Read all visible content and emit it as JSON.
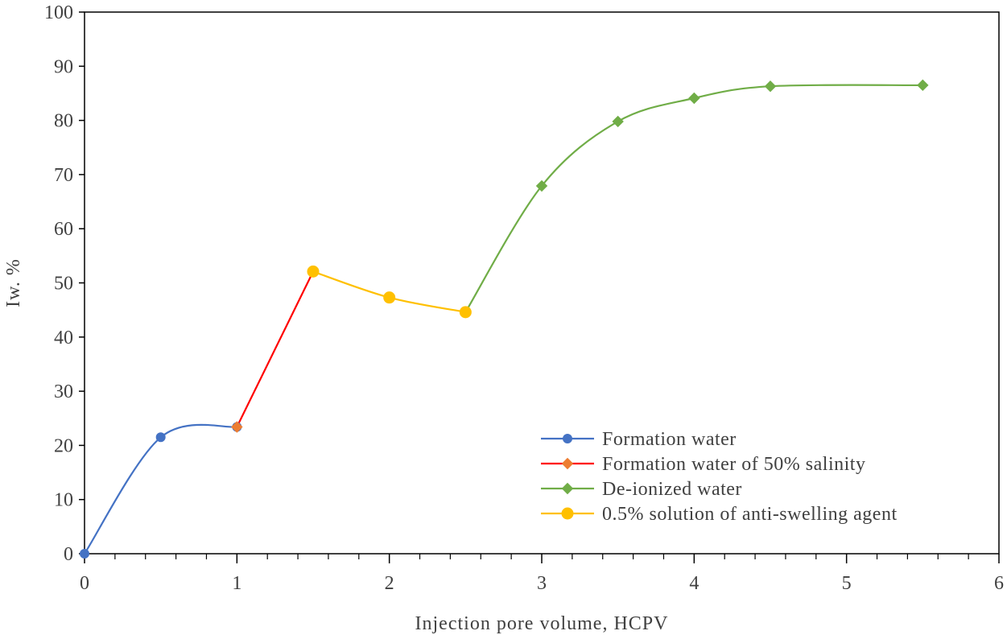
{
  "chart_data": {
    "type": "line",
    "title": "",
    "xlabel": "Injection pore volume, HCPV",
    "ylabel": "Iw. %",
    "xlim": [
      0,
      6
    ],
    "ylim": [
      0,
      100
    ],
    "xticks": [
      0,
      1,
      2,
      3,
      4,
      5,
      6
    ],
    "yticks": [
      0,
      10,
      20,
      30,
      40,
      50,
      60,
      70,
      80,
      90,
      100
    ],
    "x_minor_step": 0.2,
    "grid": false,
    "legend_position": "bottom-right",
    "series": [
      {
        "name": "Formation water",
        "color": "#4472C4",
        "marker": "circle",
        "smooth": true,
        "x": [
          0,
          0.5,
          1
        ],
        "y": [
          0,
          21.5,
          23.4
        ]
      },
      {
        "name": "Formation water of 50% salinity",
        "color": "#FF0000",
        "marker_color": "#ED7D31",
        "marker": "diamond",
        "smooth": false,
        "x": [
          1,
          1.5
        ],
        "y": [
          23.4,
          52.1
        ]
      },
      {
        "name": "De-ionized water",
        "color": "#70AD47",
        "marker": "diamond",
        "smooth": true,
        "x": [
          2.5,
          3,
          3.5,
          4,
          4.5,
          5.5
        ],
        "y": [
          44.6,
          67.9,
          79.8,
          84.1,
          86.3,
          86.5
        ]
      },
      {
        "name": "0.5% solution of anti-swelling agent",
        "color": "#FFC000",
        "marker_color": "#FFC000",
        "marker": "circle",
        "smooth": true,
        "x": [
          1.5,
          2,
          2.5
        ],
        "y": [
          52.1,
          47.3,
          44.6
        ]
      }
    ],
    "legend_order": [
      0,
      1,
      2,
      3
    ]
  }
}
